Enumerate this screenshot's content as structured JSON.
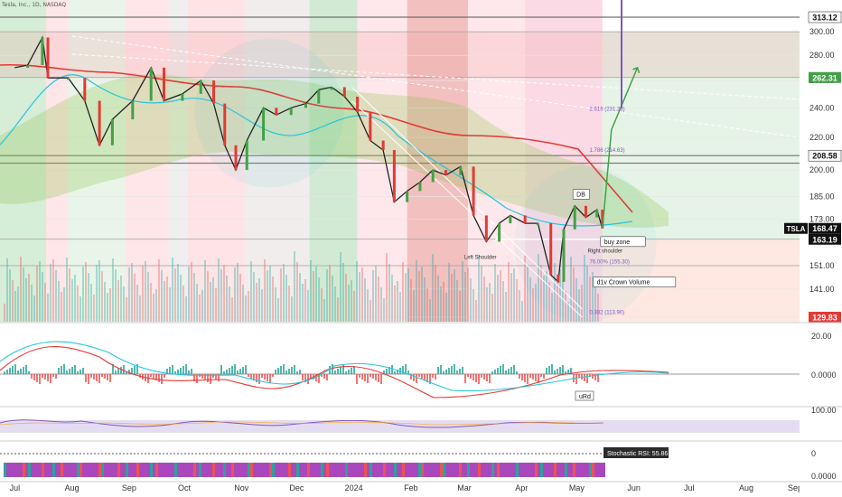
{
  "header": {
    "title": "Tesla, Inc., 1D, NASDAQ"
  },
  "chart_data": [
    {
      "type": "candlestick",
      "symbol": "TSLA",
      "interval": "1D",
      "exchange": "NASDAQ",
      "x_labels": [
        "Jul",
        "Aug",
        "Sep",
        "Oct",
        "Nov",
        "Dec",
        "2024",
        "Feb",
        "Mar",
        "Apr",
        "May",
        "Jun",
        "Jul",
        "Aug",
        "Sep"
      ],
      "y_scale": "log",
      "y_ticks": [
        300.0,
        280.0,
        260.0,
        240.0,
        220.0,
        200.0,
        185.0,
        173.0,
        163.19,
        151.0,
        141.0,
        129.83
      ],
      "y_tick_labels": [
        "300.00",
        "280.00",
        "260.00",
        "240.00",
        "220.00",
        "200.00",
        "185.00",
        "173.00",
        "163.19",
        "151.00",
        "141.00",
        "129.83"
      ],
      "price_labels": [
        {
          "text": "313.12",
          "value": 313.12,
          "bg": "#ffffff",
          "fg": "#111111"
        },
        {
          "text": "262.31",
          "value": 262.31,
          "bg": "#43a047",
          "fg": "#ffffff"
        },
        {
          "text": "208.58",
          "value": 208.58,
          "bg": "#ffffff",
          "fg": "#111111"
        },
        {
          "text": "TSLA",
          "value": 168.47,
          "bg": "#111111",
          "fg": "#ffffff",
          "tag": true
        },
        {
          "text": "168.47",
          "value": 168.47,
          "bg": "#111111",
          "fg": "#ffffff"
        },
        {
          "text": "163.19",
          "value": 163.19,
          "bg": "#111111",
          "fg": "#ffffff"
        },
        {
          "text": "129.83",
          "value": 129.83,
          "bg": "#e53935",
          "fg": "#ffffff"
        }
      ],
      "close_path": [
        [
          "2023-07-03",
          270
        ],
        [
          "2023-07-10",
          272
        ],
        [
          "2023-07-18",
          295
        ],
        [
          "2023-07-21",
          262
        ],
        [
          "2023-08-01",
          262
        ],
        [
          "2023-08-10",
          245
        ],
        [
          "2023-08-18",
          215
        ],
        [
          "2023-08-25",
          232
        ],
        [
          "2023-09-05",
          245
        ],
        [
          "2023-09-15",
          270
        ],
        [
          "2023-09-22",
          245
        ],
        [
          "2023-10-02",
          250
        ],
        [
          "2023-10-12",
          260
        ],
        [
          "2023-10-19",
          243
        ],
        [
          "2023-10-25",
          215
        ],
        [
          "2023-10-31",
          200
        ],
        [
          "2023-11-06",
          218
        ],
        [
          "2023-11-15",
          240
        ],
        [
          "2023-11-22",
          235
        ],
        [
          "2023-11-30",
          240
        ],
        [
          "2023-12-08",
          243
        ],
        [
          "2023-12-15",
          253
        ],
        [
          "2023-12-22",
          255
        ],
        [
          "2023-12-29",
          248
        ],
        [
          "2024-01-05",
          237
        ],
        [
          "2024-01-12",
          218
        ],
        [
          "2024-01-19",
          212
        ],
        [
          "2024-01-25",
          182
        ],
        [
          "2024-02-01",
          188
        ],
        [
          "2024-02-08",
          193
        ],
        [
          "2024-02-15",
          200
        ],
        [
          "2024-02-22",
          197
        ],
        [
          "2024-03-01",
          202
        ],
        [
          "2024-03-08",
          175
        ],
        [
          "2024-03-15",
          162
        ],
        [
          "2024-03-22",
          171
        ],
        [
          "2024-03-28",
          175
        ],
        [
          "2024-04-05",
          171
        ],
        [
          "2024-04-12",
          171
        ],
        [
          "2024-04-19",
          147
        ],
        [
          "2024-04-23",
          144
        ],
        [
          "2024-04-26",
          168
        ],
        [
          "2024-05-02",
          180
        ],
        [
          "2024-05-08",
          174
        ],
        [
          "2024-05-14",
          178
        ],
        [
          "2024-05-17",
          168.47
        ]
      ],
      "annotations": [
        {
          "text": "DB",
          "date": "2024-05-01",
          "value": 185
        },
        {
          "text": "buy zone",
          "date": "2024-05-16",
          "value": 161
        },
        {
          "text": "Left Shoulder",
          "date": "2024-03-03",
          "value": 154
        },
        {
          "text": "Right shoulder",
          "date": "2024-05-09",
          "value": 157
        },
        {
          "text": "76.00% (155.30)",
          "date": "2024-05-10",
          "value": 152
        },
        {
          "text": "d1v Crown Volume",
          "date": "2024-05-12",
          "value": 143
        },
        {
          "text": "1.786 (214.63)",
          "date": "2024-05-10",
          "value": 211
        },
        {
          "text": "2.618 (231.25)",
          "date": "2024-05-10",
          "value": 238
        },
        {
          "text": "0.382 (113.90)",
          "date": "2024-05-10",
          "value": 131
        }
      ],
      "levels": [
        313.12,
        300.0,
        262.31,
        208.58,
        204.0,
        163.19,
        151.0
      ],
      "macd_pane": {
        "y_tick_labels": [
          "20.00",
          "0.0000"
        ],
        "annotations": [
          "uRd"
        ]
      },
      "rsi_pane": {
        "y_tick_labels": [
          "100.00"
        ]
      },
      "stoch_pane": {
        "y_tick_labels": [
          "0",
          "0.0000"
        ],
        "label": "Stochastic RSI: 55.86"
      }
    }
  ]
}
